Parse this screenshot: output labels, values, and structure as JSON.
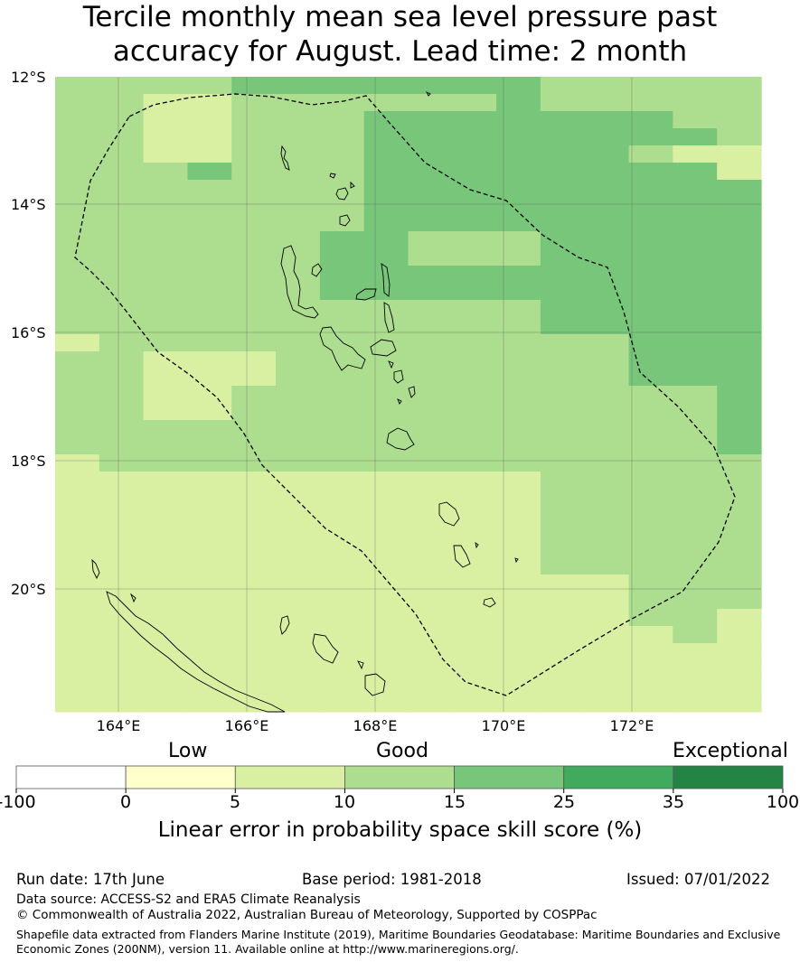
{
  "title_line1": "Tercile monthly mean sea level pressure past",
  "title_line2": "accuracy for August. Lead time: 2 month",
  "lat_labels": [
    "12°S",
    "14°S",
    "16°S",
    "18°S",
    "20°S"
  ],
  "lon_labels": [
    "164°E",
    "166°E",
    "168°E",
    "170°E",
    "172°E"
  ],
  "legend": {
    "categories": [
      "Low",
      "Good",
      "Exceptional"
    ],
    "ticks": [
      "-100",
      "0",
      "5",
      "10",
      "15",
      "25",
      "35",
      "100"
    ],
    "colors": [
      "#ffffff",
      "#ffffcc",
      "#d9f0a3",
      "#addd8e",
      "#78c679",
      "#41ab5d",
      "#238443"
    ],
    "label": "Linear error in probability space skill score (%)"
  },
  "footer": {
    "run_date": "Run date: 17th June",
    "base_period": "Base period: 1981-2018",
    "issued": "Issued: 07/01/2022",
    "data_source": "Data source: ACCESS-S2 and ERA5 Climate Reanalysis",
    "copyright": "© Commonwealth of Australia 2022, Australian Bureau of Meteorology, Supported by COSPPac",
    "shapefile": "Shapefile data extracted from Flanders Marine Institute (2019), Maritime Boundaries Geodatabase: Maritime Boundaries and Exclusive Economic Zones (200NM), version 11. Available online at http://www.marineregions.org/."
  },
  "grid_classes": [
    "3333444444433333",
    "3322333333433333",
    "3322333444444433",
    "3322333444444443",
    "3322333444444322",
    "3334333444444442",
    "3333333444444444",
    "3333333444444444",
    "3333333444444444",
    "3333334433344444",
    "3333334433344444",
    "3333334444444444",
    "3333334444444444",
    "3333333333344444",
    "3333333333344444",
    "2333333333333444",
    "3322233333333444",
    "3322233333333444",
    "3322333333333334",
    "3322333333333334",
    "3333333333333334",
    "3333333333333334",
    "2333333333333333",
    "2222222222233333",
    "2222222222233333",
    "2222222222233333",
    "2222222222233333",
    "2222222222233333",
    "2222222222233333",
    "2222222222222333",
    "2222222222222333",
    "2222222222222332",
    "2222222222222232",
    "2222222222222222",
    "2222222222222222",
    "2222222222222222",
    "2222222222222222"
  ]
}
